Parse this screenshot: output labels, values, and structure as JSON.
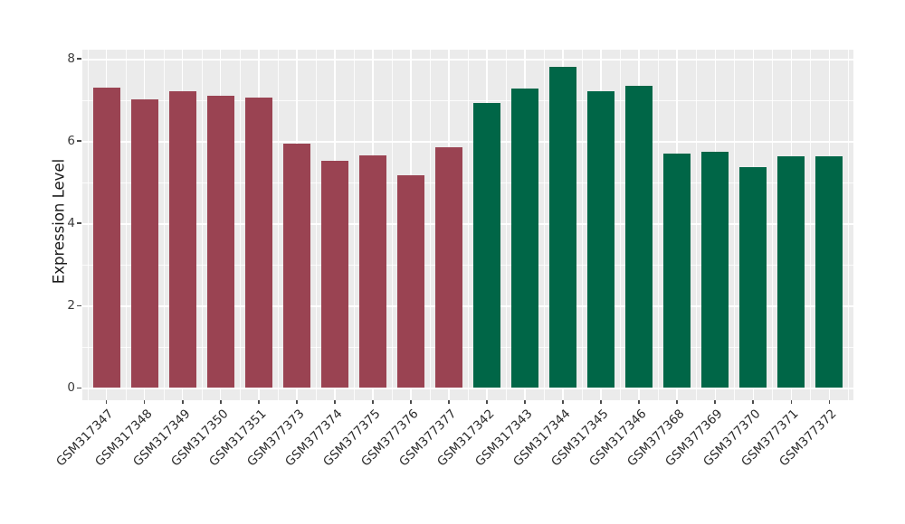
{
  "chart_data": {
    "type": "bar",
    "title": "",
    "xlabel": "",
    "ylabel": "Expression Level",
    "ylim": [
      0,
      8.2
    ],
    "yticks": [
      0,
      2,
      4,
      6,
      8
    ],
    "minor_yticks": [
      1,
      3,
      5,
      7
    ],
    "grid": true,
    "legend_position": "none",
    "panel_bg": "#EBEBEB",
    "grid_color": "#FFFFFF",
    "x_tick_rotation_deg": -45,
    "series": [
      {
        "name": "group-1",
        "color": "#9A4352",
        "categories": [
          "GSM317347",
          "GSM317348",
          "GSM317349",
          "GSM317350",
          "GSM317351",
          "GSM377373",
          "GSM377374",
          "GSM377375",
          "GSM377376",
          "GSM377377"
        ],
        "values": [
          7.3,
          7.01,
          7.22,
          7.11,
          7.05,
          5.93,
          5.52,
          5.65,
          5.18,
          5.86
        ]
      },
      {
        "name": "group-2",
        "color": "#006647",
        "categories": [
          "GSM317342",
          "GSM317343",
          "GSM317344",
          "GSM317345",
          "GSM317346",
          "GSM377368",
          "GSM377369",
          "GSM377370",
          "GSM377371",
          "GSM377372"
        ],
        "values": [
          6.93,
          7.28,
          7.8,
          7.21,
          7.35,
          5.7,
          5.73,
          5.36,
          5.63,
          5.63
        ]
      }
    ]
  }
}
